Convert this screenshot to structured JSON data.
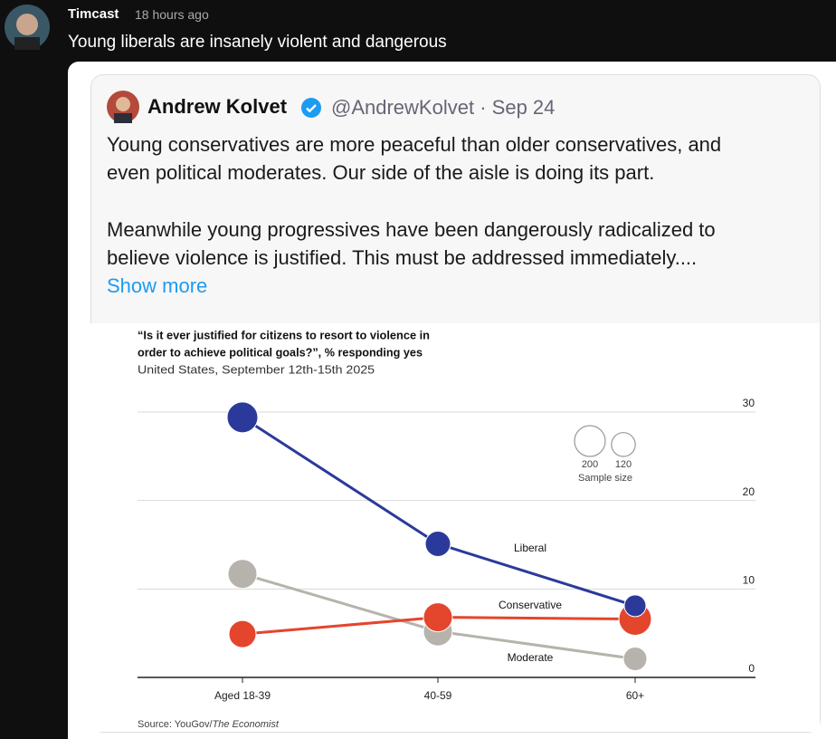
{
  "post": {
    "author": "Timcast",
    "time": "18 hours ago",
    "text": "Young liberals are insanely violent and dangerous"
  },
  "quote": {
    "name": "Andrew Kolvet",
    "handle": "@AndrewKolvet",
    "separator": "·",
    "date": "Sep 24",
    "paragraphs": [
      [
        "Young conservatives are more peaceful than older conservatives, and",
        "even political moderates. Our side of the aisle is doing its part."
      ],
      [
        "Meanwhile young progressives have been dangerously radicalized to",
        "believe violence is justified. This must be addressed immediately...."
      ]
    ],
    "show_more": "Show more"
  },
  "chart_data": {
    "type": "bubble-line",
    "title": [
      "“Is it ever justified for citizens to resort to violence in",
      "order to achieve political goals?”, % responding yes"
    ],
    "subtitle": "United States, September 12th-15th 2025",
    "categories": [
      "Aged 18-39",
      "40-59",
      "60+"
    ],
    "series": [
      {
        "name": "Moderate",
        "color": "#b5b3ab",
        "values": [
          11.7,
          5.2,
          2.1
        ],
        "sizes": [
          177,
          177,
          117
        ]
      },
      {
        "name": "Conservative",
        "color": "#e4452d",
        "values": [
          4.9,
          6.8,
          6.6
        ],
        "sizes": [
          156,
          177,
          224
        ]
      },
      {
        "name": "Liberal",
        "color": "#2b3a9a",
        "values": [
          29.4,
          15.1,
          8.1
        ],
        "sizes": [
          200,
          135,
          100
        ]
      }
    ],
    "ylim": [
      0,
      30
    ],
    "yticks": [
      0,
      10,
      20,
      30
    ],
    "grid": true,
    "size_legend": {
      "values": [
        200,
        120
      ],
      "title": "Sample size"
    },
    "source": [
      "Source: YouGov/",
      "The Economist"
    ]
  }
}
